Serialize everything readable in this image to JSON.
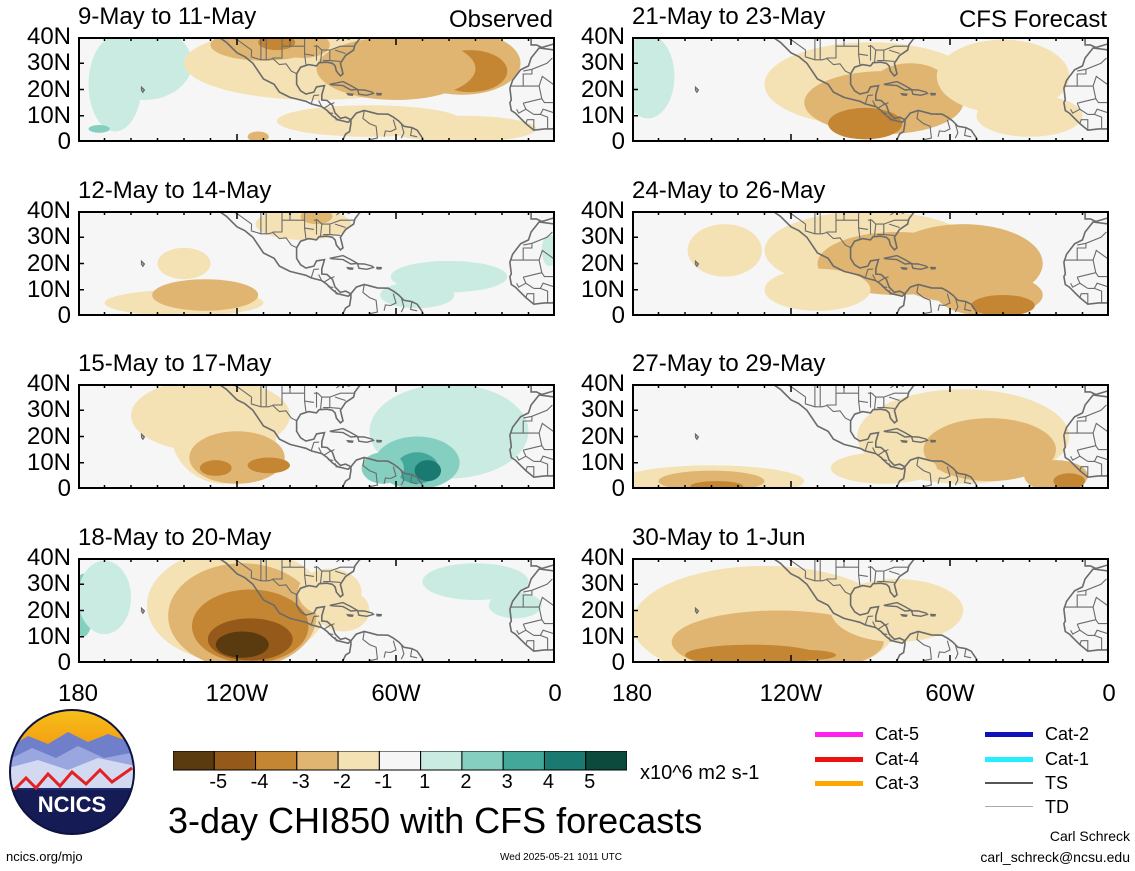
{
  "panels_left": [
    {
      "title": "9-May to 11-May",
      "tag": "Observed"
    },
    {
      "title": "12-May to 14-May",
      "tag": ""
    },
    {
      "title": "15-May to 17-May",
      "tag": ""
    },
    {
      "title": "18-May to 20-May",
      "tag": ""
    }
  ],
  "panels_right": [
    {
      "title": "21-May to 23-May",
      "tag": "CFS Forecast"
    },
    {
      "title": "24-May to 26-May",
      "tag": ""
    },
    {
      "title": "27-May to 29-May",
      "tag": ""
    },
    {
      "title": "30-May to 1-Jun",
      "tag": ""
    }
  ],
  "lat_labels": [
    "40N",
    "30N",
    "20N",
    "10N",
    "0"
  ],
  "lon_labels": [
    "180",
    "120W",
    "60W",
    "0"
  ],
  "colorbar": {
    "labels": [
      "-5",
      "-4",
      "-3",
      "-2",
      "-1",
      "1",
      "2",
      "3",
      "4",
      "5"
    ],
    "colors": [
      "#5a3a0f",
      "#955a1a",
      "#c58633",
      "#dfb571",
      "#f4e2b4",
      "#f6f6f6",
      "#c9ebe2",
      "#85cfc0",
      "#43a79a",
      "#1a7a72",
      "#0c4a3e"
    ],
    "units": "x10^6 m2 s-1"
  },
  "main_title": "3-day CHI850 with CFS forecasts",
  "logo_text": "NCICS",
  "footer": {
    "url": "ncics.org/mjo",
    "timestamp": "Wed 2025-05-21 1011 UTC",
    "author": "Carl Schreck",
    "email": "carl_schreck@ncsu.edu"
  },
  "storm_legend": [
    {
      "label": "Cat-5",
      "color": "#ff22ee"
    },
    {
      "label": "Cat-4",
      "color": "#ee1111"
    },
    {
      "label": "Cat-3",
      "color": "#ffa500"
    },
    {
      "label": "Cat-2",
      "color": "#1111bb"
    },
    {
      "label": "Cat-1",
      "color": "#22eeff"
    },
    {
      "label": "TS",
      "color": "#555555"
    },
    {
      "label": "TD",
      "color": "#aaaaaa"
    }
  ]
}
